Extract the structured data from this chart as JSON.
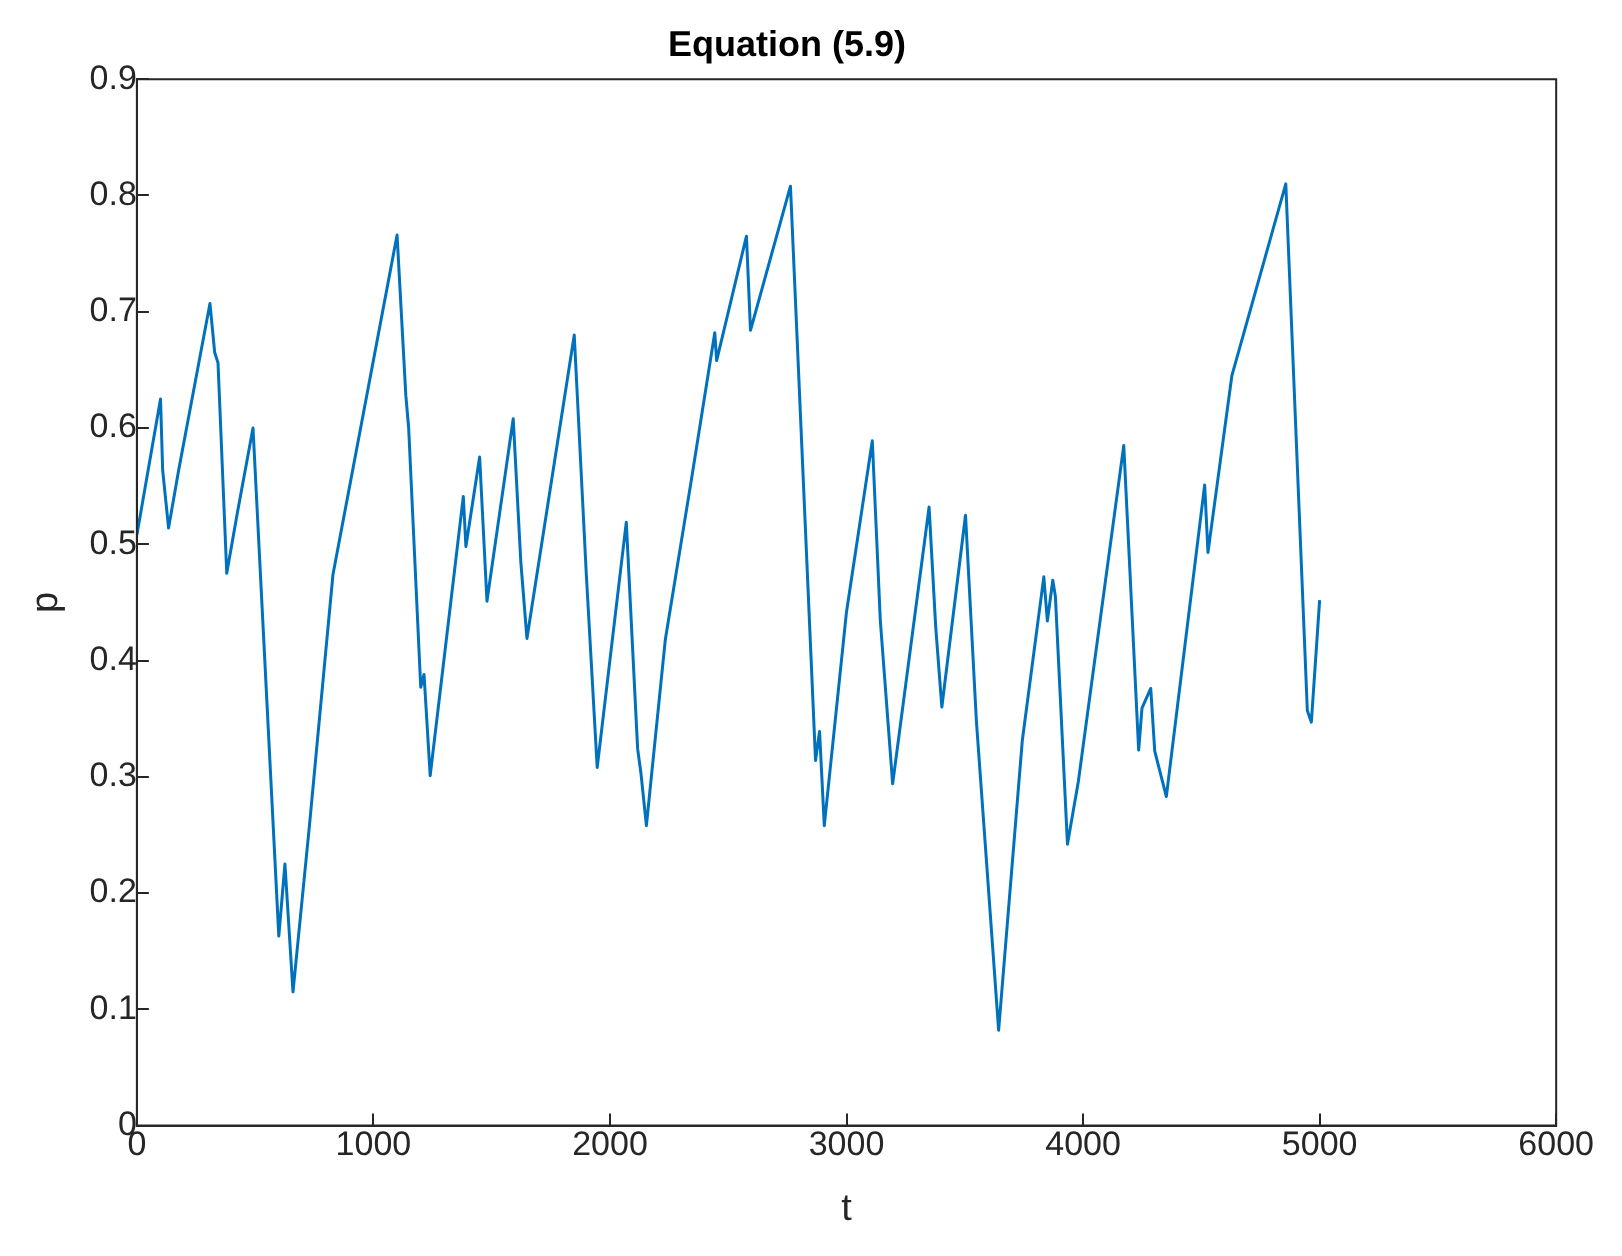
{
  "chart_data": {
    "type": "line",
    "title": "Equation (5.9)",
    "xlabel": "t",
    "ylabel": "p",
    "xlim": [
      0,
      6000
    ],
    "xticks": [
      0,
      1000,
      2000,
      3000,
      4000,
      5000,
      6000
    ],
    "ylim": [
      0,
      0.9
    ],
    "yticks": [
      0,
      0.1,
      0.2,
      0.3,
      0.4,
      0.5,
      0.6,
      0.7,
      0.8,
      0.9
    ],
    "series": [
      {
        "color": "#0072bd",
        "x": [
          0,
          100,
          109,
          134,
          177,
          309,
          329,
          343,
          380,
          423,
          491,
          600,
          626,
          660,
          729,
          829,
          1100,
          1137,
          1149,
          1200,
          1214,
          1240,
          1380,
          1391,
          1449,
          1480,
          1591,
          1623,
          1649,
          1849,
          1900,
          1946,
          2069,
          2117,
          2131,
          2154,
          2234,
          2343,
          2443,
          2451,
          2577,
          2594,
          2763,
          2869,
          2886,
          2906,
          3000,
          3109,
          3143,
          3195,
          3349,
          3377,
          3403,
          3503,
          3549,
          3643,
          3743,
          3834,
          3849,
          3872,
          3883,
          3934,
          3980,
          4172,
          4235,
          4249,
          4286,
          4303,
          4352,
          4514,
          4528,
          4629,
          4857,
          4948,
          4965,
          5000
        ],
        "values": [
          0.508,
          0.625,
          0.564,
          0.514,
          0.564,
          0.707,
          0.665,
          0.656,
          0.475,
          0.525,
          0.6,
          0.163,
          0.225,
          0.115,
          0.257,
          0.474,
          0.766,
          0.628,
          0.6,
          0.377,
          0.388,
          0.301,
          0.541,
          0.498,
          0.575,
          0.451,
          0.608,
          0.485,
          0.419,
          0.68,
          0.474,
          0.308,
          0.519,
          0.324,
          0.303,
          0.258,
          0.418,
          0.554,
          0.682,
          0.658,
          0.765,
          0.684,
          0.808,
          0.314,
          0.339,
          0.258,
          0.442,
          0.589,
          0.434,
          0.294,
          0.532,
          0.429,
          0.36,
          0.525,
          0.348,
          0.082,
          0.331,
          0.472,
          0.434,
          0.469,
          0.455,
          0.242,
          0.296,
          0.585,
          0.323,
          0.359,
          0.376,
          0.322,
          0.283,
          0.551,
          0.493,
          0.645,
          0.81,
          0.357,
          0.347,
          0.452
        ]
      }
    ]
  }
}
